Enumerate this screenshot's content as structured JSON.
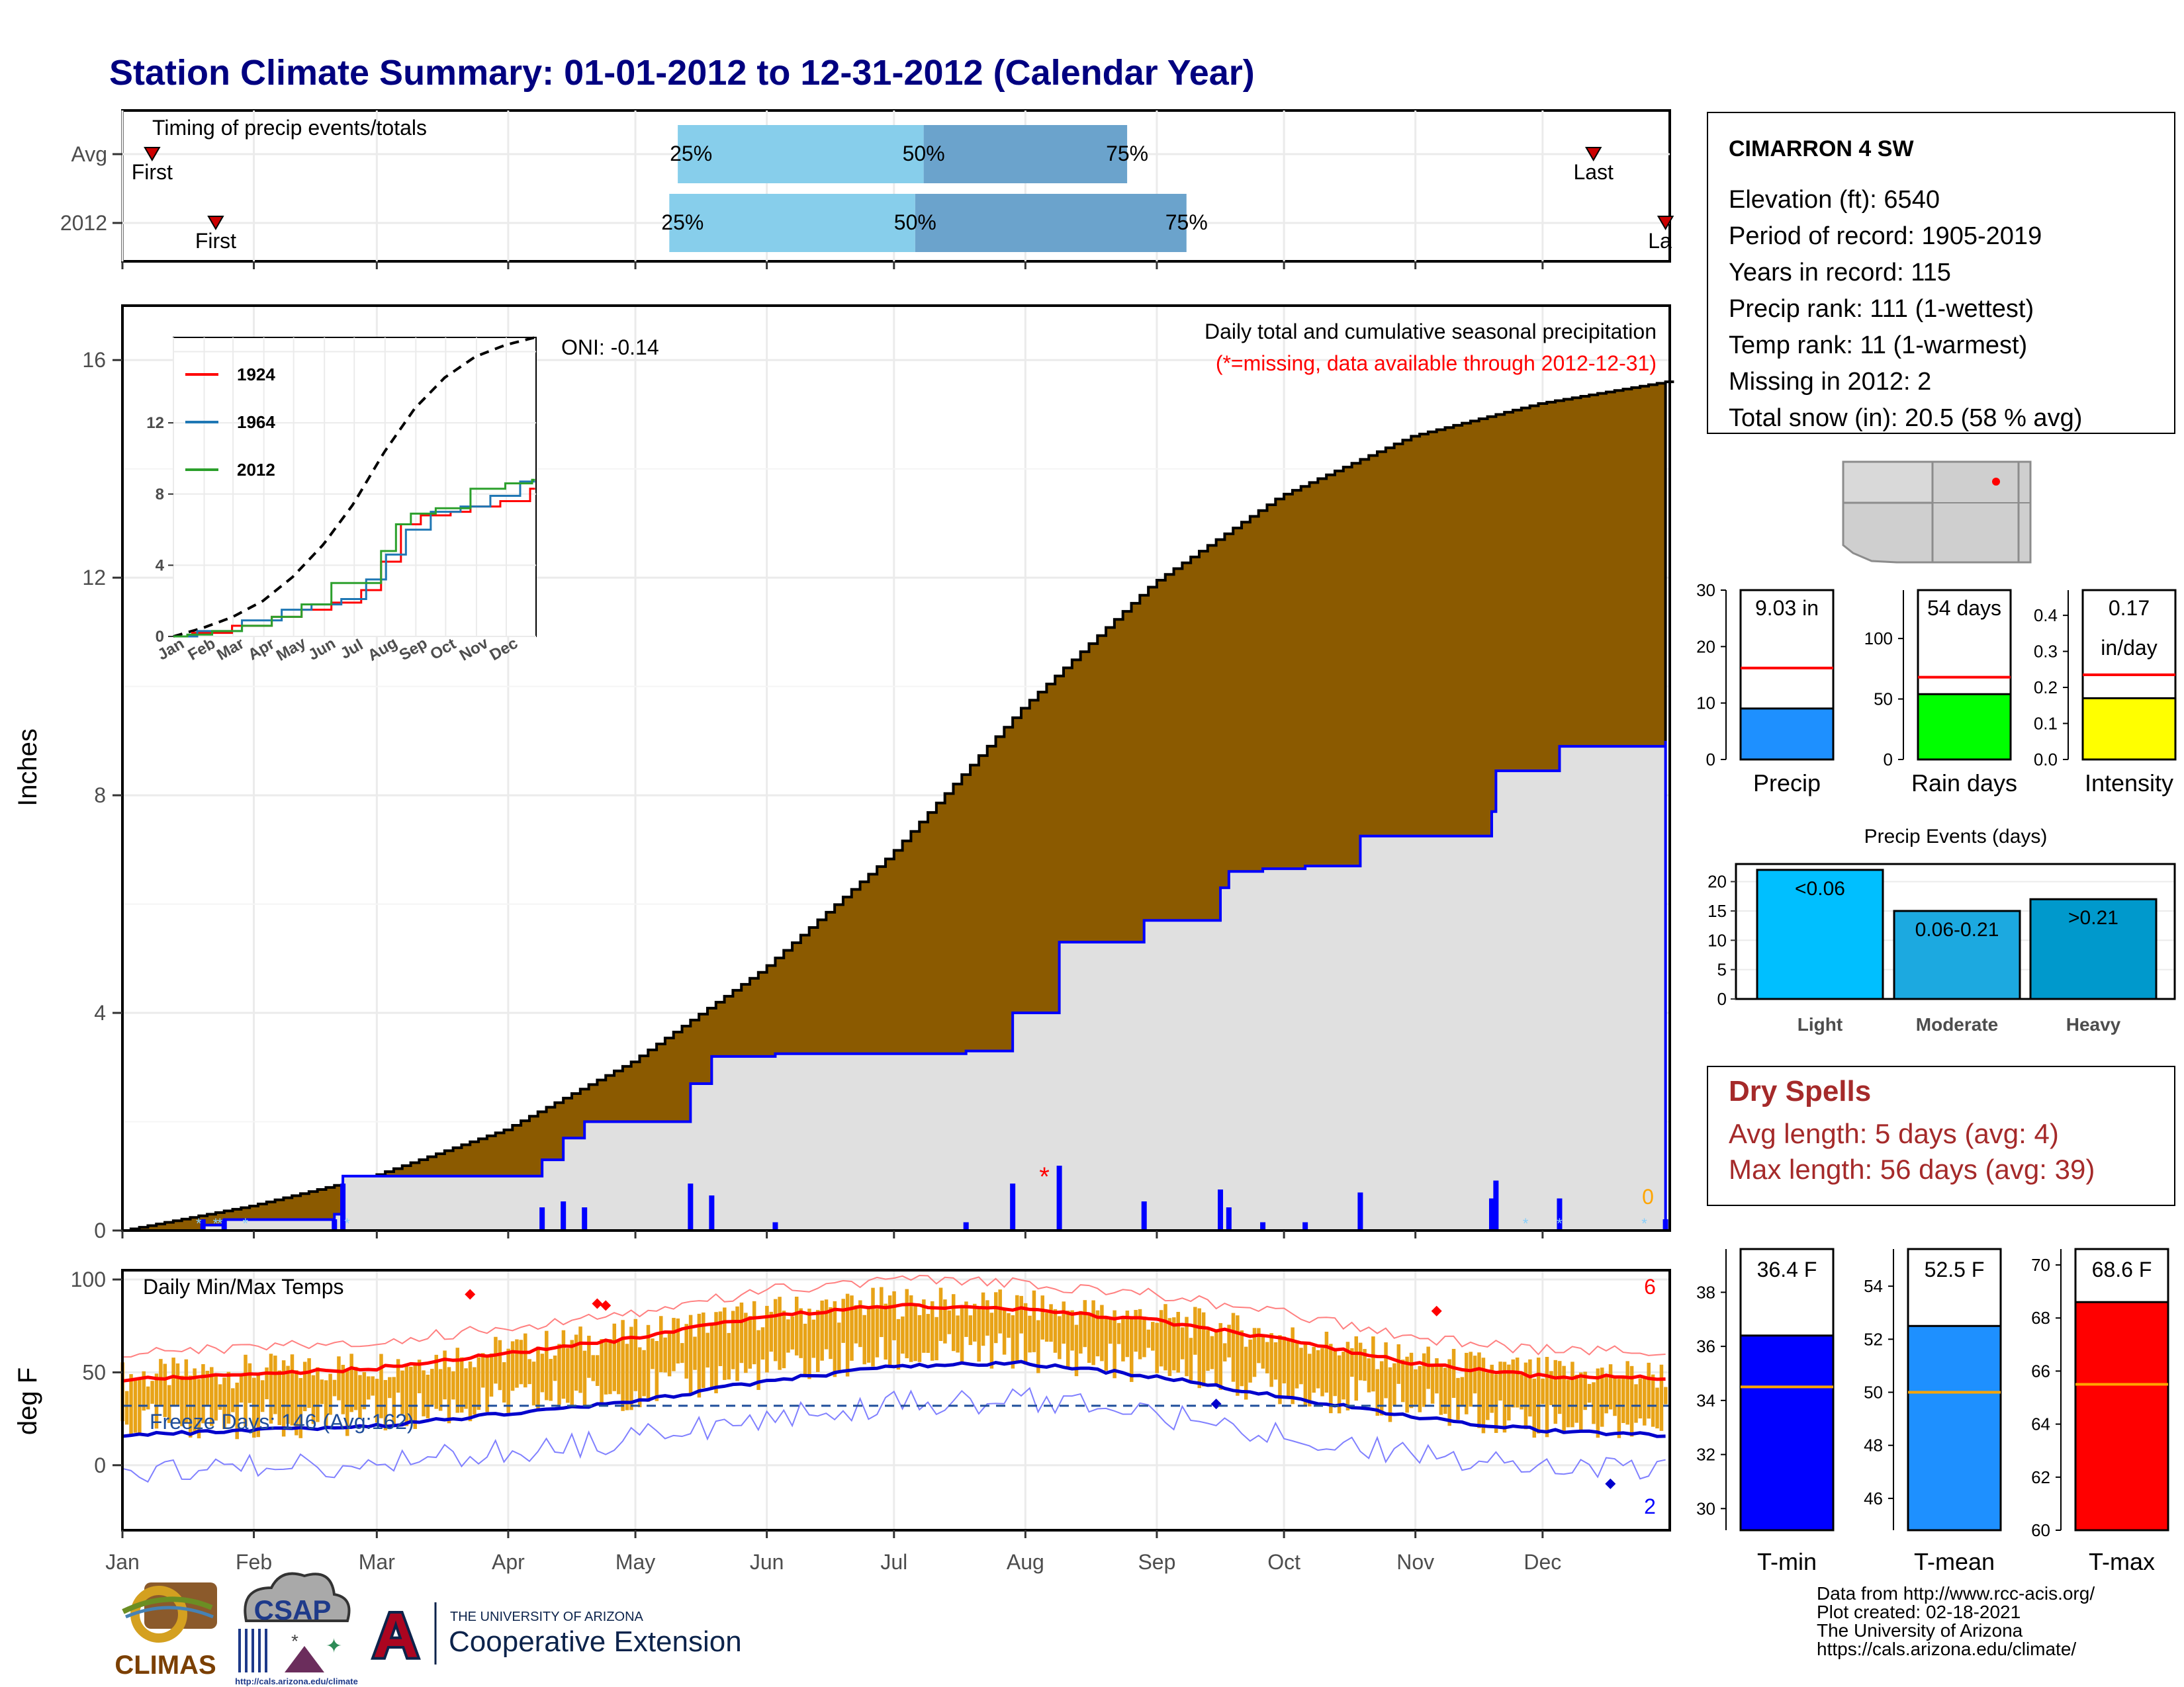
{
  "title": "Station Climate Summary: 01-01-2012 to 12-31-2012 (Calendar Year)",
  "colors": {
    "title": "#000080",
    "brown": "#8B5A00",
    "gray_fill": "#E0E0E0",
    "blue": "#0000FF",
    "light_blue": "#87CEEB",
    "mid_blue": "#6BA3CC",
    "red": "#FF0000",
    "orange": "#E8A317",
    "dry_spell_text": "#A52A2A",
    "precip_bar": "#1E90FF",
    "rain_bar": "#00FF00",
    "intensity_bar": "#FFFF00",
    "events_light": "#00BFFF",
    "events_moderate": "#1CA9E0",
    "events_heavy": "#0099CC",
    "tmin_bar": "#0000FF",
    "tmean_bar": "#1E90FF",
    "tmax_bar": "#FF0000",
    "avg_line_orange": "#FFA500"
  },
  "months": [
    "Jan",
    "Feb",
    "Mar",
    "Apr",
    "May",
    "Jun",
    "Jul",
    "Aug",
    "Sep",
    "Oct",
    "Nov",
    "Dec"
  ],
  "timing_panel": {
    "label": "Timing of precip events/totals",
    "rows": [
      {
        "name": "Avg",
        "first_label": "First",
        "last_label": "Last",
        "first_doy": 8,
        "last_doy": 348,
        "p25_doy": 132,
        "p50_doy": 190,
        "p75_doy": 238,
        "p25_label": "25%",
        "p50_label": "50%",
        "p75_label": "75%"
      },
      {
        "name": "2012",
        "first_label": "First",
        "last_label": "La",
        "first_doy": 23,
        "last_doy": 365,
        "p25_doy": 130,
        "p50_doy": 188,
        "p75_doy": 252,
        "p25_label": "25%",
        "p50_label": "50%",
        "p75_label": "75%"
      }
    ]
  },
  "main_panel": {
    "ylabel": "Inches",
    "annotation_title": "Daily total and cumulative seasonal precipitation",
    "annotation_missing": "(*=missing, data available through 2012-12-31)",
    "oni": "ONI: -0.14",
    "corner_count": "0"
  },
  "inset": {
    "legend": [
      "1924",
      "1964",
      "2012"
    ],
    "legend_colors": [
      "#FF0000",
      "#1F77B4",
      "#2CA02C"
    ],
    "y_ticks": [
      "0",
      "4",
      "8",
      "12"
    ],
    "x_ticks": [
      "Jan",
      "Feb",
      "Mar",
      "Apr",
      "May",
      "Jun",
      "Jul",
      "Aug",
      "Sep",
      "Oct",
      "Nov",
      "Dec"
    ]
  },
  "temp_panel": {
    "label": "Daily Min/Max Temps",
    "ylabel": "deg F",
    "freeze_label": "Freeze Days: 146 (Avg:162)",
    "count_top": "6",
    "count_bottom": "2"
  },
  "station_box": {
    "name": "CIMARRON 4 SW",
    "lines": [
      "Elevation (ft): 6540",
      "Period of record: 1905-2019",
      "Years in record: 115",
      "Precip rank: 111 (1-wettest)",
      "Temp rank: 11 (1-warmest)",
      "Missing in 2012: 2",
      "Total snow (in): 20.5 (58 % avg)"
    ]
  },
  "summary_bars": [
    {
      "label": "Precip",
      "value_label": "9.03 in",
      "value": 9.03,
      "avg": 16.2,
      "ymax": 30,
      "ticks": [
        "0",
        "10",
        "20",
        "30"
      ]
    },
    {
      "label": "Rain days",
      "value_label": "54 days",
      "value": 54,
      "avg": 68,
      "ymax": 140,
      "ticks": [
        "0",
        "50",
        "100"
      ]
    },
    {
      "label": "Intensity",
      "value_label": "0.17",
      "value_label2": "in/day",
      "value": 0.17,
      "avg": 0.235,
      "ymax": 0.47,
      "ticks": [
        "0.0",
        "0.1",
        "0.2",
        "0.3",
        "0.4"
      ]
    }
  ],
  "precip_events": {
    "title": "Precip Events (days)",
    "categories": [
      "Light",
      "Moderate",
      "Heavy"
    ],
    "values": [
      22,
      15,
      17
    ],
    "value_labels": [
      "<0.06",
      "0.06-0.21",
      ">0.21"
    ],
    "y_ticks": [
      "0",
      "5",
      "10",
      "15",
      "20"
    ]
  },
  "dry_spells": {
    "title": "Dry Spells",
    "avg_line": "Avg length: 5 days (avg: 4)",
    "max_line": "Max length: 56 days (avg: 39)"
  },
  "temp_bars": [
    {
      "label": "T-min",
      "value_label": "36.4 F",
      "value": 36.4,
      "avg": 34.5,
      "ymin": 29.2,
      "ymax": 39.6,
      "ticks": [
        "30",
        "32",
        "34",
        "36",
        "38"
      ]
    },
    {
      "label": "T-mean",
      "value_label": "52.5 F",
      "value": 52.5,
      "avg": 50.0,
      "ymin": 44.8,
      "ymax": 55.4,
      "ticks": [
        "46",
        "48",
        "50",
        "52",
        "54"
      ]
    },
    {
      "label": "T-max",
      "value_label": "68.6 F",
      "value": 68.6,
      "avg": 65.5,
      "ymin": 60,
      "ymax": 70.6,
      "ticks": [
        "60",
        "62",
        "64",
        "66",
        "68",
        "70"
      ]
    }
  ],
  "credits": [
    "Data from http://www.rcc-acis.org/",
    "Plot created: 02-18-2021",
    "The University of Arizona",
    "https://cals.arizona.edu/climate/"
  ],
  "logos": {
    "climas": "CLIMAS",
    "csap": "CSAP",
    "csap_url": "http://cals.arizona.edu/climate",
    "ua_small": "THE UNIVERSITY OF ARIZONA",
    "ua_big": "Cooperative Extension",
    "ua_letter": "A"
  },
  "chart_data": [
    {
      "type": "area",
      "title": "Daily total and cumulative seasonal precipitation",
      "ylabel": "Inches",
      "ylim": [
        0,
        17
      ],
      "series": [
        {
          "name": "avg_cumulative",
          "x_doy": [
            1,
            31,
            60,
            91,
            121,
            152,
            182,
            213,
            244,
            274,
            305,
            335,
            365
          ],
          "values": [
            0,
            0.45,
            1.0,
            1.85,
            3.1,
            4.8,
            6.9,
            9.6,
            11.9,
            13.5,
            14.6,
            15.2,
            15.6
          ]
        },
        {
          "name": "2012_cumulative",
          "x_doy": [
            1,
            20,
            25,
            51,
            53,
            100,
            105,
            110,
            135,
            140,
            155,
            200,
            211,
            222,
            242,
            260,
            262,
            270,
            280,
            293,
            324,
            325,
            340,
            365
          ],
          "values": [
            0,
            0.1,
            0.2,
            0.3,
            1.0,
            1.3,
            1.7,
            2.0,
            2.7,
            3.2,
            3.25,
            3.3,
            4.0,
            5.3,
            5.7,
            6.3,
            6.6,
            6.65,
            6.7,
            7.25,
            7.7,
            8.45,
            8.9,
            9.0
          ]
        }
      ]
    },
    {
      "type": "line",
      "title": "Daily Min/Max Temps",
      "ylabel": "deg F",
      "ylim": [
        -35,
        105
      ],
      "series": [
        {
          "name": "avg_max",
          "x_doy": [
            1,
            60,
            121,
            152,
            182,
            213,
            244,
            274,
            305,
            335,
            365
          ],
          "values": [
            46,
            52,
            68,
            80,
            86,
            84,
            78,
            68,
            55,
            48,
            47
          ]
        },
        {
          "name": "avg_min",
          "x_doy": [
            1,
            60,
            121,
            152,
            182,
            213,
            244,
            274,
            305,
            335,
            365
          ],
          "values": [
            16,
            21,
            34,
            45,
            53,
            55,
            48,
            37,
            26,
            19,
            16
          ]
        }
      ]
    }
  ]
}
